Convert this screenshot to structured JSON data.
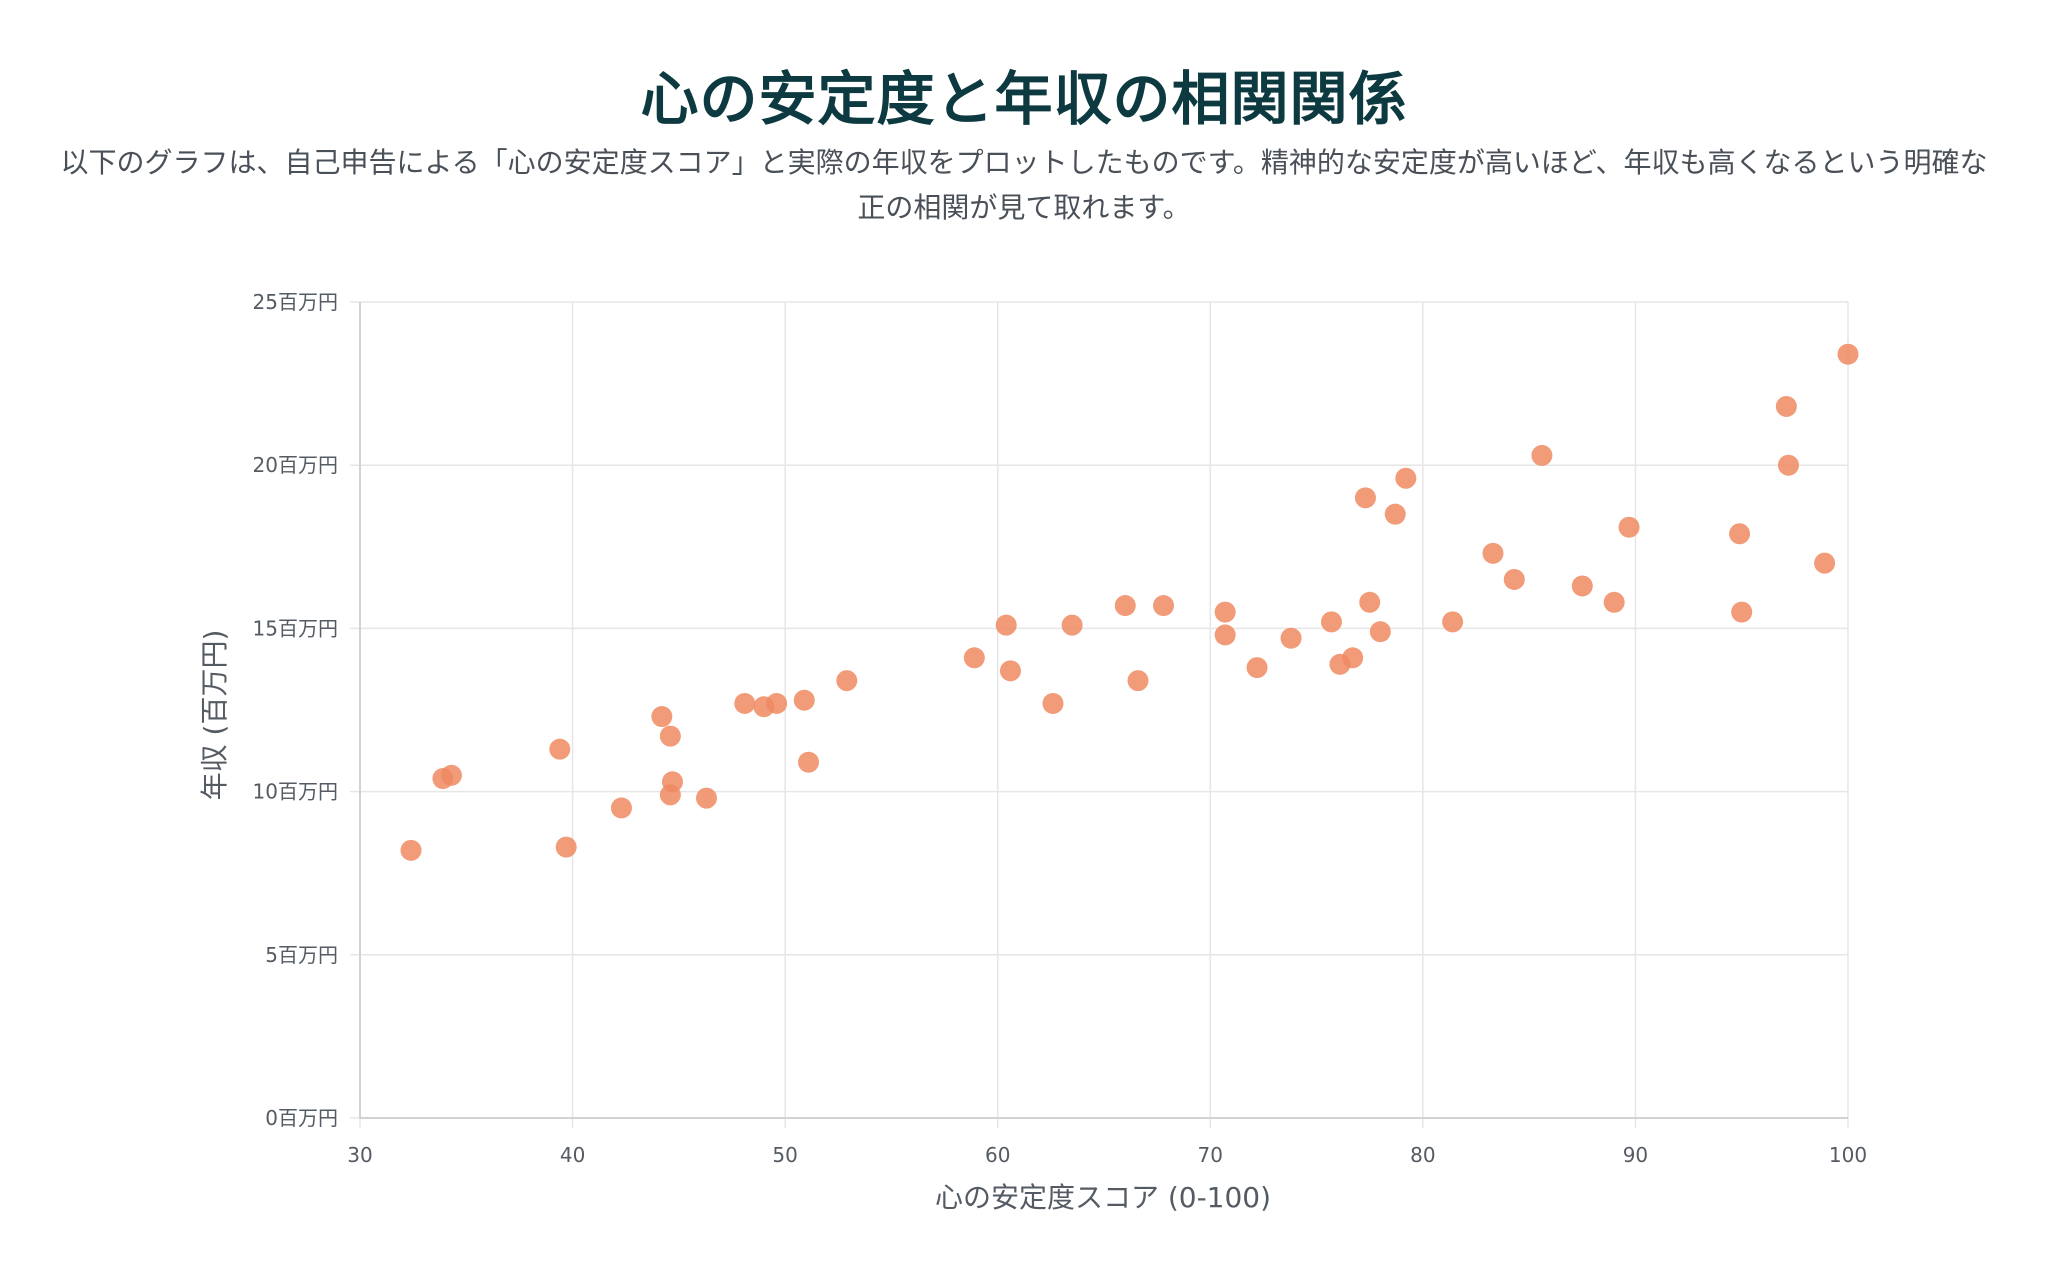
{
  "header": {
    "title": "心の安定度と年収の相関関係",
    "description": "以下のグラフは、自己申告による「心の安定度スコア」と実際の年収をプロットしたものです。精神的な安定度が高いほど、年収も高くなるという明確な正の相関が見て取れます。"
  },
  "chart_data": {
    "type": "scatter",
    "xlabel": "心の安定度スコア (0-100)",
    "ylabel": "年収 (百万円)",
    "xlim": [
      30,
      100
    ],
    "ylim": [
      0,
      25
    ],
    "x_ticks": [
      30,
      40,
      50,
      60,
      70,
      80,
      90,
      100
    ],
    "y_ticks": [
      0,
      5,
      10,
      15,
      20,
      25
    ],
    "y_tick_suffix": "百万円",
    "grid": true,
    "legend": "none",
    "point_color": "#ef8a62",
    "series": [
      {
        "points": [
          [
            32.4,
            8.2
          ],
          [
            33.9,
            10.4
          ],
          [
            34.3,
            10.5
          ],
          [
            39.4,
            11.3
          ],
          [
            39.7,
            8.3
          ],
          [
            42.3,
            9.5
          ],
          [
            44.2,
            12.3
          ],
          [
            44.6,
            11.7
          ],
          [
            44.7,
            10.3
          ],
          [
            44.6,
            9.9
          ],
          [
            46.3,
            9.8
          ],
          [
            48.1,
            12.7
          ],
          [
            49.0,
            12.6
          ],
          [
            49.6,
            12.7
          ],
          [
            50.9,
            12.8
          ],
          [
            51.1,
            10.9
          ],
          [
            52.9,
            13.4
          ],
          [
            58.9,
            14.1
          ],
          [
            60.4,
            15.1
          ],
          [
            60.6,
            13.7
          ],
          [
            62.6,
            12.7
          ],
          [
            63.5,
            15.1
          ],
          [
            66.0,
            15.7
          ],
          [
            66.6,
            13.4
          ],
          [
            67.8,
            15.7
          ],
          [
            70.7,
            15.5
          ],
          [
            70.7,
            14.8
          ],
          [
            72.2,
            13.8
          ],
          [
            73.8,
            14.7
          ],
          [
            75.7,
            15.2
          ],
          [
            76.1,
            13.9
          ],
          [
            76.7,
            14.1
          ],
          [
            77.3,
            19.0
          ],
          [
            77.5,
            15.8
          ],
          [
            78.0,
            14.9
          ],
          [
            78.7,
            18.5
          ],
          [
            79.2,
            19.6
          ],
          [
            81.4,
            15.2
          ],
          [
            83.3,
            17.3
          ],
          [
            84.3,
            16.5
          ],
          [
            85.6,
            20.3
          ],
          [
            87.5,
            16.3
          ],
          [
            89.0,
            15.8
          ],
          [
            89.7,
            18.1
          ],
          [
            94.9,
            17.9
          ],
          [
            95.0,
            15.5
          ],
          [
            97.1,
            21.8
          ],
          [
            97.2,
            20.0
          ],
          [
            98.9,
            17.0
          ],
          [
            100.0,
            23.4
          ]
        ]
      }
    ]
  }
}
